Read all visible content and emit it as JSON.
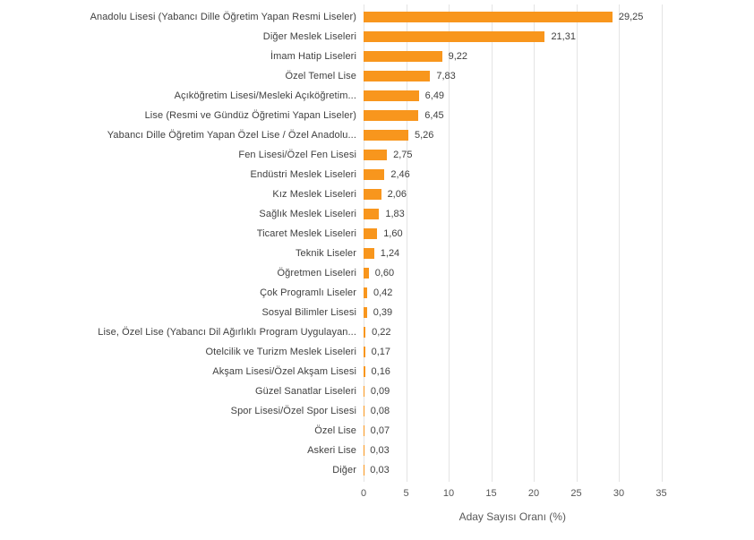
{
  "chart_data": {
    "type": "bar",
    "orientation": "horizontal",
    "title": "",
    "xlabel": "Aday Sayısı Oranı (%)",
    "ylabel": "",
    "xlim": [
      0,
      35
    ],
    "xticks": [
      0,
      5,
      10,
      15,
      20,
      25,
      30,
      35
    ],
    "grid": true,
    "categories": [
      "Anadolu Lisesi (Yabancı Dille Öğretim Yapan Resmi Liseler)",
      "Diğer Meslek Liseleri",
      "İmam Hatip Liseleri",
      "Özel Temel Lise",
      "Açıköğretim Lisesi/Mesleki Açıköğretim...",
      "Lise (Resmi ve Gündüz Öğretimi Yapan Liseler)",
      "Yabancı Dille Öğretim Yapan Özel Lise / Özel Anadolu...",
      "Fen Lisesi/Özel Fen Lisesi",
      "Endüstri Meslek Liseleri",
      "Kız Meslek Liseleri",
      "Sağlık Meslek Liseleri",
      "Ticaret Meslek Liseleri",
      "Teknik Liseler",
      "Öğretmen Liseleri",
      "Çok Programlı Liseler",
      "Sosyal Bilimler Lisesi",
      "Lise, Özel Lise (Yabancı Dil Ağırlıklı Program Uygulayan...",
      "Otelcilik ve Turizm Meslek Liseleri",
      "Akşam Lisesi/Özel Akşam Lisesi",
      "Güzel Sanatlar Liseleri",
      "Spor Lisesi/Özel Spor Lisesi",
      "Özel Lise",
      "Askeri Lise",
      "Diğer"
    ],
    "values": [
      29.25,
      21.31,
      9.22,
      7.83,
      6.49,
      6.45,
      5.26,
      2.75,
      2.46,
      2.06,
      1.83,
      1.6,
      1.24,
      0.6,
      0.42,
      0.39,
      0.22,
      0.17,
      0.16,
      0.09,
      0.08,
      0.07,
      0.03,
      0.03
    ],
    "value_labels": [
      "29,25",
      "21,31",
      "9,22",
      "7,83",
      "6,49",
      "6,45",
      "5,26",
      "2,75",
      "2,46",
      "2,06",
      "1,83",
      "1,60",
      "1,24",
      "0,60",
      "0,42",
      "0,39",
      "0,22",
      "0,17",
      "0,16",
      "0,09",
      "0,08",
      "0,07",
      "0,03",
      "0,03"
    ],
    "colors": {
      "bar": "#F8961D",
      "category_label": "#3F3F3F",
      "value_label": "#3F3F3F",
      "gridline": "#E4E4E4",
      "tick_label": "#555555",
      "axis_title": "#595959",
      "background": "#FFFFFF"
    }
  }
}
